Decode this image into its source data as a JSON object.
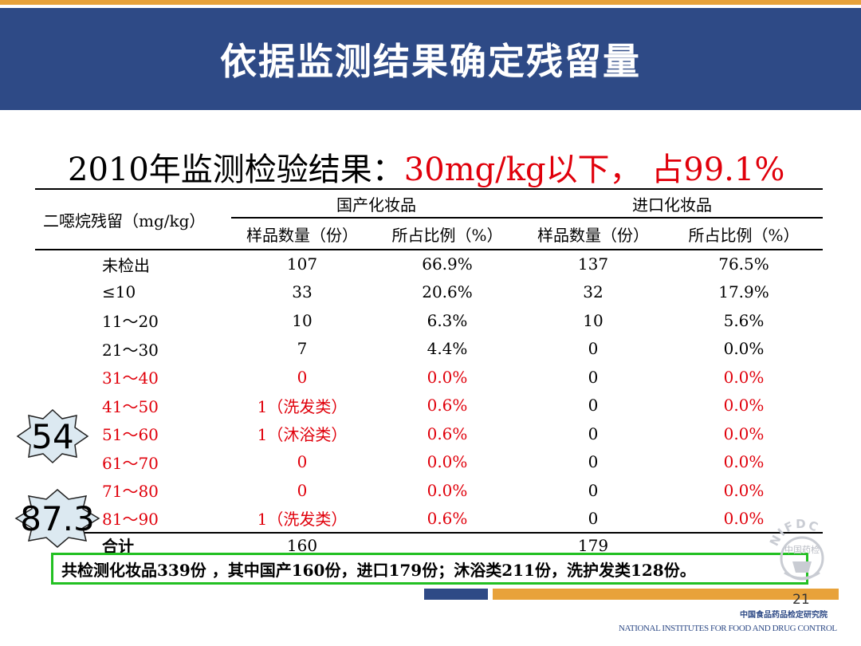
{
  "slide": {
    "title": "依据监测结果确定残留量",
    "subtitle_prefix": "2010年监测检验结果：",
    "subtitle_highlight": "30mg/kg以下，  占99.1%",
    "page_number": "21"
  },
  "table": {
    "row_header": "二噁烷残留（mg/kg）",
    "group_domestic": "国产化妆品",
    "group_import": "进口化妆品",
    "col_count": "样品数量（份）",
    "col_ratio": "所占比例（%）",
    "rows": [
      {
        "range": "未检出",
        "d_count": "107",
        "d_pct": "66.9%",
        "i_count": "137",
        "i_pct": "76.5%"
      },
      {
        "range": "≤10",
        "d_count": "33",
        "d_pct": "20.6%",
        "i_count": "32",
        "i_pct": "17.9%"
      },
      {
        "range": "11～20",
        "d_count": "10",
        "d_pct": "6.3%",
        "i_count": "10",
        "i_pct": "5.6%"
      },
      {
        "range": "21～30",
        "d_count": "7",
        "d_pct": "4.4%",
        "i_count": "0",
        "i_pct": "0.0%"
      },
      {
        "range": "31～40",
        "d_count": "0",
        "d_pct": "0.0%",
        "i_count": "0",
        "i_pct": "0.0%"
      },
      {
        "range": "41～50",
        "d_count": "1（洗发类）",
        "d_pct": "0.6%",
        "i_count": "0",
        "i_pct": "0.0%"
      },
      {
        "range": "51～60",
        "d_count": "1（沐浴类）",
        "d_pct": "0.6%",
        "i_count": "0",
        "i_pct": "0.0%"
      },
      {
        "range": "61～70",
        "d_count": "0",
        "d_pct": "0.0%",
        "i_count": "0",
        "i_pct": "0.0%"
      },
      {
        "range": "71～80",
        "d_count": "0",
        "d_pct": "0.0%",
        "i_count": "0",
        "i_pct": "0.0%"
      },
      {
        "range": "81～90",
        "d_count": "1（洗发类）",
        "d_pct": "0.6%",
        "i_count": "0",
        "i_pct": "0.0%"
      }
    ],
    "total_label": "合计",
    "total_domestic": "160",
    "total_import": "179"
  },
  "callouts": {
    "star_a": "54",
    "star_b": "87.3"
  },
  "summary": "共检测化妆品339份 ，其中国产160份，进口179份；沐浴类211份，洗护发类128份。",
  "footer": {
    "institute_cn": "中国食品药品检定研究院",
    "institute_en": "NATIONAL INSTITUTES FOR FOOD AND DRUG CONTROL",
    "logo_text": "NIFDC",
    "logo_cn": "中国药检"
  },
  "colors": {
    "header": "#2e4a86",
    "accent_orange": "#e8a23a",
    "highlight_red": "#e0000b",
    "summary_border": "#22c022",
    "star_fill": "#dce9f1"
  }
}
